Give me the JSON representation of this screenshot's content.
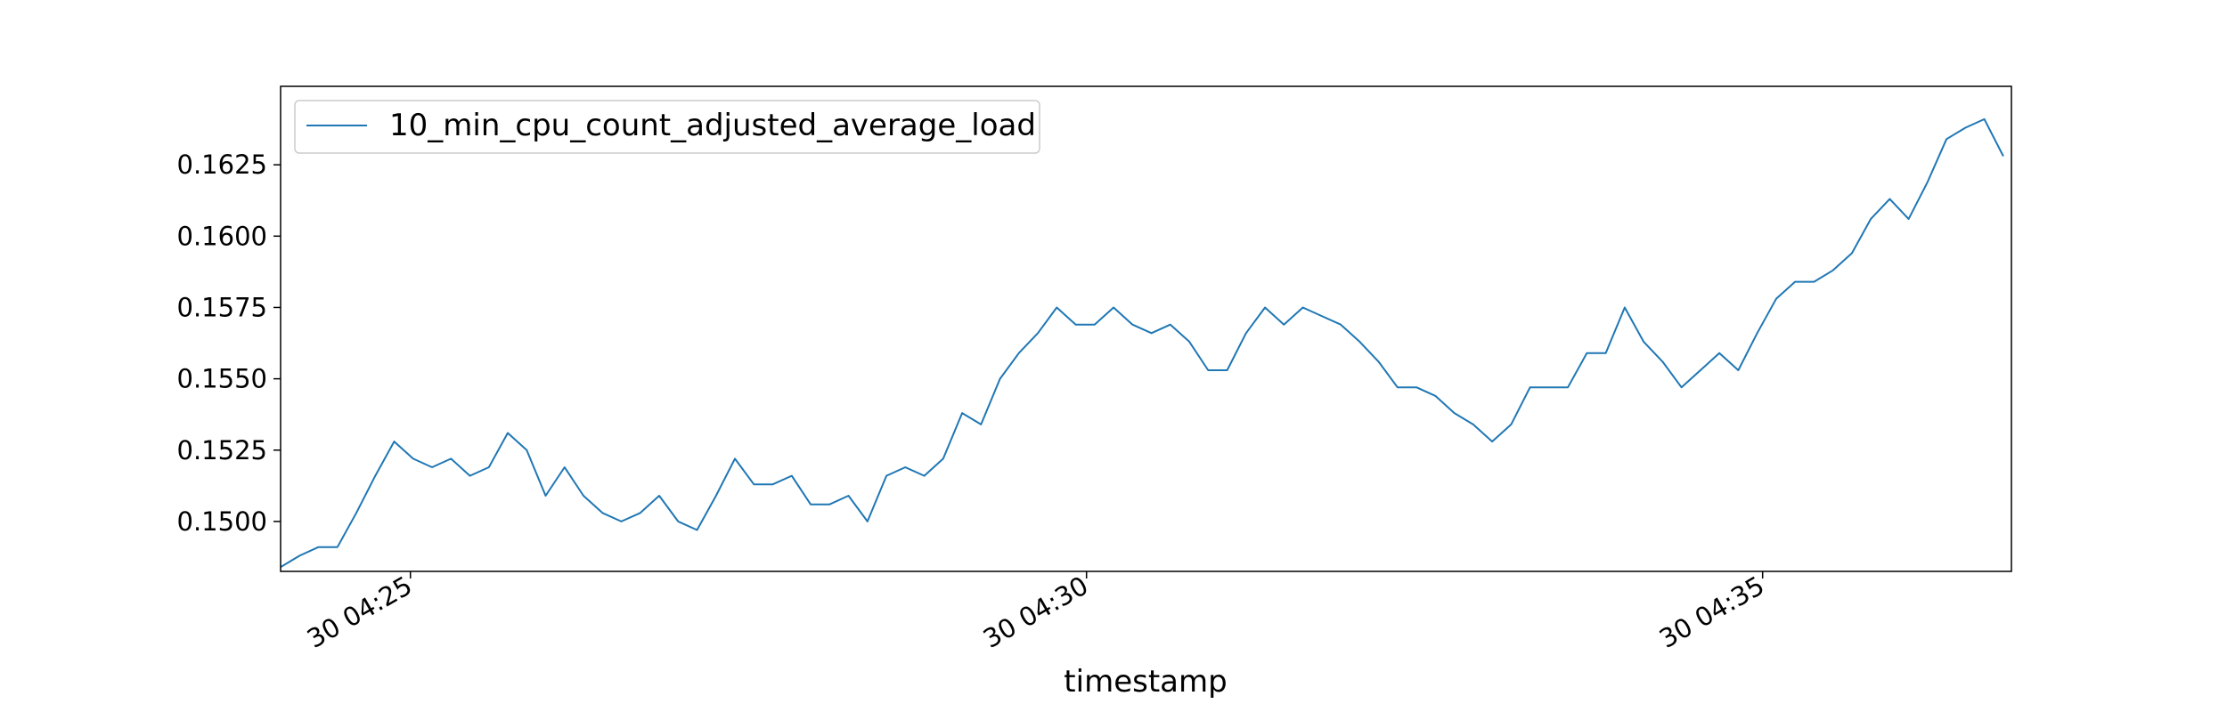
{
  "chart_data": {
    "type": "line",
    "title": "",
    "xlabel": "timestamp",
    "ylabel": "",
    "legend": {
      "position": "top-left",
      "entries": [
        "10_min_cpu_count_adjusted_average_load"
      ]
    },
    "grid": false,
    "ylim": [
      0.14825,
      0.16525
    ],
    "xlim_minutes": [
      0,
      12.8
    ],
    "x_ticks": [
      {
        "label": "30 04:25",
        "minute": 0.96
      },
      {
        "label": "30 04:30",
        "minute": 5.96
      },
      {
        "label": "30 04:35",
        "minute": 10.96
      }
    ],
    "y_ticks": [
      {
        "label": "0.1500",
        "value": 0.15
      },
      {
        "label": "0.1525",
        "value": 0.1525
      },
      {
        "label": "0.1550",
        "value": 0.155
      },
      {
        "label": "0.1575",
        "value": 0.1575
      },
      {
        "label": "0.1600",
        "value": 0.16
      },
      {
        "label": "0.1625",
        "value": 0.1625
      }
    ],
    "series": [
      {
        "name": "10_min_cpu_count_adjusted_average_load",
        "color": "#1f77b4",
        "x_step_minutes": 0.14,
        "values": [
          0.1484,
          0.1488,
          0.1491,
          0.1491,
          0.1503,
          0.1516,
          0.1528,
          0.1522,
          0.1519,
          0.1522,
          0.1516,
          0.1519,
          0.1531,
          0.1525,
          0.1509,
          0.1519,
          0.1509,
          0.1503,
          0.15,
          0.1503,
          0.1509,
          0.15,
          0.1497,
          0.1509,
          0.1522,
          0.1513,
          0.1513,
          0.1516,
          0.1506,
          0.1506,
          0.1509,
          0.15,
          0.1516,
          0.1519,
          0.1516,
          0.1522,
          0.1538,
          0.1534,
          0.155,
          0.1559,
          0.1566,
          0.1575,
          0.1569,
          0.1569,
          0.1575,
          0.1569,
          0.1566,
          0.1569,
          0.1563,
          0.1553,
          0.1553,
          0.1566,
          0.1575,
          0.1569,
          0.1575,
          0.1572,
          0.1569,
          0.1563,
          0.1556,
          0.1547,
          0.1547,
          0.1544,
          0.1538,
          0.1534,
          0.1528,
          0.1534,
          0.1547,
          0.1547,
          0.1547,
          0.1559,
          0.1559,
          0.1575,
          0.1563,
          0.1556,
          0.1547,
          0.1553,
          0.1559,
          0.1553,
          0.1566,
          0.1578,
          0.1584,
          0.1584,
          0.1588,
          0.1594,
          0.1606,
          0.1613,
          0.1606,
          0.1619,
          0.1634,
          0.1638,
          0.1641,
          0.1628
        ]
      }
    ]
  }
}
